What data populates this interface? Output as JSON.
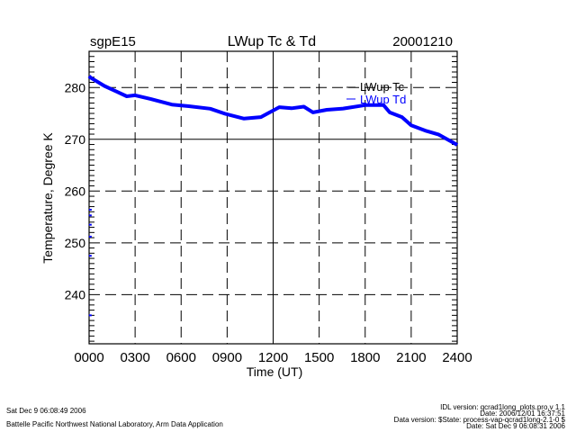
{
  "header": {
    "site": "sgpE15",
    "date": "20001210"
  },
  "footer": {
    "left": [
      "Sat Dec  9 06:08:49 2006",
      "Battelle Pacific Northwest National Laboratory, Arm Data Application"
    ],
    "right": [
      "IDL version: qcrad1long_plots.pro,v 1.1",
      "Date: 2006/12/01 16:37:51",
      "Data version: $State: process-vap-qcrad1long-2.1-0 $",
      "Date: Sat Dec  9 06:08:31 2006"
    ]
  },
  "chart_data": {
    "type": "line",
    "title": "LWup Tc & Td",
    "xlabel": "Time (UT)",
    "ylabel": "Temperature, Degree K",
    "xlim": [
      0,
      24
    ],
    "ylim": [
      230.5,
      287
    ],
    "x_ticks": [
      0,
      3,
      6,
      9,
      12,
      15,
      18,
      21,
      24
    ],
    "x_tick_labels": [
      "0000",
      "0300",
      "0600",
      "0900",
      "1200",
      "1500",
      "1800",
      "2100",
      "2400"
    ],
    "y_ticks": [
      240,
      250,
      260,
      270,
      280
    ],
    "y_tick_labels": [
      "240",
      "250",
      "260",
      "270",
      "280"
    ],
    "grid": true,
    "legend_position": "top-right",
    "series": [
      {
        "name": "LWup Tc",
        "color": "#000000",
        "x": [],
        "y": []
      },
      {
        "name": "LWup Td",
        "color": "#0000ff",
        "x": [
          0.0,
          0.1,
          1.0,
          2.45,
          3.0,
          4.0,
          5.4,
          6.5,
          7.9,
          8.9,
          10.1,
          11.2,
          12.4,
          13.2,
          14.0,
          14.6,
          15.5,
          16.5,
          18.0,
          19.2,
          19.6,
          20.4,
          21.0,
          22.0,
          22.8,
          23.9,
          24.0
        ],
        "y": [
          282.2,
          281.9,
          280.3,
          278.3,
          278.5,
          277.8,
          276.7,
          276.4,
          275.9,
          274.9,
          274.0,
          274.3,
          276.2,
          276.0,
          276.3,
          275.2,
          275.7,
          275.9,
          276.6,
          276.6,
          275.2,
          274.3,
          272.7,
          271.6,
          270.9,
          269.1,
          268.9
        ]
      }
    ],
    "outliers": {
      "name": "LWup Td",
      "x": [
        0.05,
        0.05,
        0.05,
        0.05,
        0.05,
        0.05
      ],
      "y": [
        256.4,
        255.3,
        253.5,
        251.2,
        247.5,
        236.0
      ]
    }
  }
}
